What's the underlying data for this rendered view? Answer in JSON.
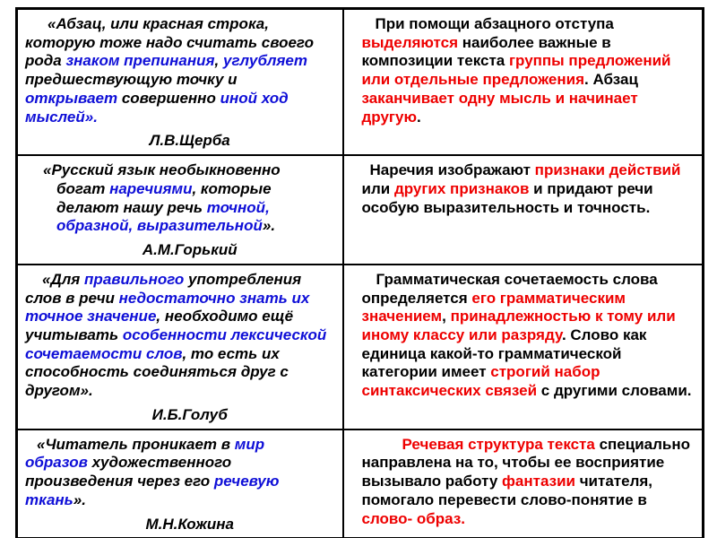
{
  "colors": {
    "black": "#000000",
    "blue": "#0f0fd7",
    "red": "#ee0000",
    "border": "#000000",
    "background": "#ffffff"
  },
  "table": {
    "rows": [
      {
        "quote": {
          "segments": [
            {
              "text": "«Абзац, или красная строка, которую тоже надо считать своего рода ",
              "color": "black"
            },
            {
              "text": "знаком препинания",
              "color": "blue"
            },
            {
              "text": ", ",
              "color": "black"
            },
            {
              "text": "углубляет",
              "color": "blue"
            },
            {
              "text": " предшествующую точку и ",
              "color": "black"
            },
            {
              "text": "открывает",
              "color": "blue"
            },
            {
              "text": " совершенно ",
              "color": "black"
            },
            {
              "text": "иной ход мыслей».",
              "color": "blue"
            }
          ],
          "author": "Л.В.Щерба"
        },
        "explanation": {
          "segments": [
            {
              "text": "При помощи абзацного отступа ",
              "color": "black"
            },
            {
              "text": "выделяются",
              "color": "red"
            },
            {
              "text": " наиболее важные в композиции текста ",
              "color": "black"
            },
            {
              "text": "группы предложений или отдельные предложения",
              "color": "red"
            },
            {
              "text": ". Абзац ",
              "color": "black"
            },
            {
              "text": "заканчивает одну мысль и начинает другую",
              "color": "red"
            },
            {
              "text": ".",
              "color": "black"
            }
          ]
        }
      },
      {
        "quote": {
          "segments": [
            {
              "text": "«Русский язык необыкновенно богат ",
              "color": "black"
            },
            {
              "text": "наречиями",
              "color": "blue"
            },
            {
              "text": ", которые делают нашу речь ",
              "color": "black"
            },
            {
              "text": "точной, образной, выразительной",
              "color": "blue"
            },
            {
              "text": "».",
              "color": "black"
            }
          ],
          "author": "А.М.Горький"
        },
        "explanation": {
          "segments": [
            {
              "text": "Наречия изображают ",
              "color": "black"
            },
            {
              "text": "признаки действий",
              "color": "red"
            },
            {
              "text": " или ",
              "color": "black"
            },
            {
              "text": "других признаков",
              "color": "red"
            },
            {
              "text": " и придают речи особую выразительность и точность.",
              "color": "black"
            }
          ]
        }
      },
      {
        "quote": {
          "segments": [
            {
              "text": "«Для ",
              "color": "black"
            },
            {
              "text": "правильного",
              "color": "blue"
            },
            {
              "text": " употребления слов в речи ",
              "color": "black"
            },
            {
              "text": "недостаточно знать их точное значение",
              "color": "blue"
            },
            {
              "text": ", необходимо ещё учитывать ",
              "color": "black"
            },
            {
              "text": "особенности лексической сочетаемости слов",
              "color": "blue"
            },
            {
              "text": ", то есть их способность соединяться друг с другом».",
              "color": "black"
            }
          ],
          "author": "И.Б.Голуб"
        },
        "explanation": {
          "segments": [
            {
              "text": "Грамматическая сочетаемость слова определяется ",
              "color": "black"
            },
            {
              "text": "его грамматическим значением",
              "color": "red"
            },
            {
              "text": ", ",
              "color": "black"
            },
            {
              "text": "принадлежностью к тому или иному классу или разряду",
              "color": "red"
            },
            {
              "text": ". Слово как единица какой-то грамматической категории имеет ",
              "color": "black"
            },
            {
              "text": "строгий набор синтаксических связей",
              "color": "red"
            },
            {
              "text": " с другими словами.",
              "color": "black"
            }
          ]
        }
      },
      {
        "quote": {
          "segments": [
            {
              "text": "«Читатель проникает в ",
              "color": "black"
            },
            {
              "text": "мир образов",
              "color": "blue"
            },
            {
              "text": " художественного произведения через его ",
              "color": "black"
            },
            {
              "text": "речевую ткань",
              "color": "blue"
            },
            {
              "text": "».",
              "color": "black"
            }
          ],
          "author": "М.Н.Кожина"
        },
        "explanation": {
          "segments": [
            {
              "text": "Речевая структура текста",
              "color": "red"
            },
            {
              "text": " специально направлена на то, чтобы ее восприятие вызывало работу ",
              "color": "black"
            },
            {
              "text": "фантазии",
              "color": "red"
            },
            {
              "text": " читателя, помогало перевести слово-понятие в ",
              "color": "black"
            },
            {
              "text": "слово- образ.",
              "color": "red"
            }
          ]
        }
      }
    ]
  }
}
